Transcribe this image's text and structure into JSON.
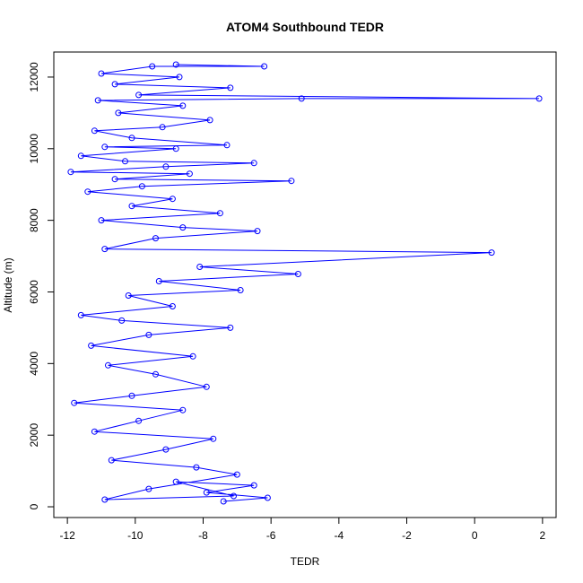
{
  "chart_data": {
    "type": "line",
    "title": "ATOM4 Southbound TEDR",
    "xlabel": "TEDR",
    "ylabel": "Altitude (m)",
    "xlim": [
      -12.4,
      2.4
    ],
    "ylim": [
      -300,
      12700
    ],
    "xticks": [
      -12,
      -10,
      -8,
      -6,
      -4,
      -2,
      0,
      2
    ],
    "yticks": [
      0,
      2000,
      4000,
      6000,
      8000,
      10000,
      12000
    ],
    "series_color": "#0000ff",
    "marker": "open-circle",
    "grid": false,
    "legend": "none",
    "series": [
      {
        "points": [
          [
            -7.4,
            150
          ],
          [
            -6.1,
            250
          ],
          [
            -7.9,
            400
          ],
          [
            -6.5,
            600
          ],
          [
            -8.8,
            700
          ],
          [
            -7.1,
            300
          ],
          [
            -10.9,
            200
          ],
          [
            -9.6,
            500
          ],
          [
            -7.0,
            900
          ],
          [
            -8.2,
            1100
          ],
          [
            -10.7,
            1300
          ],
          [
            -9.1,
            1600
          ],
          [
            -7.7,
            1900
          ],
          [
            -11.2,
            2100
          ],
          [
            -9.9,
            2400
          ],
          [
            -8.6,
            2700
          ],
          [
            -11.8,
            2900
          ],
          [
            -10.1,
            3100
          ],
          [
            -7.9,
            3350
          ],
          [
            -9.4,
            3700
          ],
          [
            -10.8,
            3950
          ],
          [
            -8.3,
            4200
          ],
          [
            -11.3,
            4500
          ],
          [
            -9.6,
            4800
          ],
          [
            -7.2,
            5000
          ],
          [
            -10.4,
            5200
          ],
          [
            -11.6,
            5350
          ],
          [
            -8.9,
            5600
          ],
          [
            -10.2,
            5900
          ],
          [
            -6.9,
            6050
          ],
          [
            -9.3,
            6300
          ],
          [
            -5.2,
            6500
          ],
          [
            -8.1,
            6700
          ],
          [
            0.5,
            7100
          ],
          [
            -10.9,
            7200
          ],
          [
            -9.4,
            7500
          ],
          [
            -6.4,
            7700
          ],
          [
            -8.6,
            7800
          ],
          [
            -11.0,
            8000
          ],
          [
            -7.5,
            8200
          ],
          [
            -10.1,
            8400
          ],
          [
            -8.9,
            8600
          ],
          [
            -11.4,
            8800
          ],
          [
            -9.8,
            8950
          ],
          [
            -5.4,
            9100
          ],
          [
            -10.6,
            9150
          ],
          [
            -8.4,
            9300
          ],
          [
            -11.9,
            9350
          ],
          [
            -9.1,
            9500
          ],
          [
            -6.5,
            9600
          ],
          [
            -10.3,
            9650
          ],
          [
            -11.6,
            9800
          ],
          [
            -8.8,
            10000
          ],
          [
            -10.9,
            10050
          ],
          [
            -7.3,
            10100
          ],
          [
            -10.1,
            10300
          ],
          [
            -11.2,
            10500
          ],
          [
            -9.2,
            10600
          ],
          [
            -7.8,
            10800
          ],
          [
            -10.5,
            11000
          ],
          [
            -8.6,
            11200
          ],
          [
            -11.1,
            11350
          ],
          [
            -5.1,
            11400
          ],
          [
            1.9,
            11400
          ],
          [
            -9.9,
            11500
          ],
          [
            -7.2,
            11700
          ],
          [
            -10.6,
            11800
          ],
          [
            -8.7,
            12000
          ],
          [
            -11.0,
            12100
          ],
          [
            -9.5,
            12300
          ],
          [
            -6.2,
            12300
          ],
          [
            -8.8,
            12350
          ]
        ]
      }
    ]
  }
}
